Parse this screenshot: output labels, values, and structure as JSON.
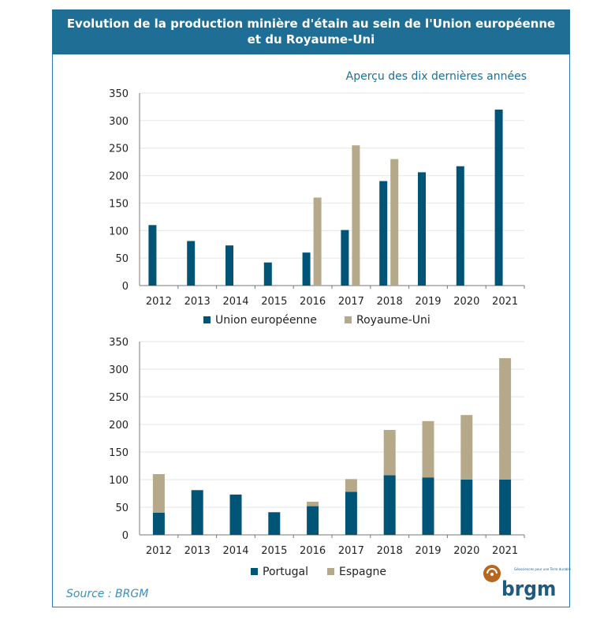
{
  "header": {
    "title_line1": "Evolution de la production minière d'étain au sein de l'Union européenne",
    "title_line2": "et du Royaume-Uni"
  },
  "subtitle": "Aperçu des dix dernières années",
  "source": "Source : BRGM",
  "logo": {
    "text": "brgm",
    "tagline": "Géosciences pour une Terre durable"
  },
  "colors": {
    "navy": "#005577",
    "tan": "#b6a98a",
    "header": "#1f6e96"
  },
  "chart_data": [
    {
      "type": "bar",
      "grouping": "clustered",
      "categories": [
        "2012",
        "2013",
        "2014",
        "2015",
        "2016",
        "2017",
        "2018",
        "2019",
        "2020",
        "2021"
      ],
      "series": [
        {
          "name": "Union européenne",
          "color": "#005577",
          "values": [
            110,
            81,
            73,
            42,
            60,
            101,
            190,
            206,
            217,
            320
          ]
        },
        {
          "name": "Royaume-Uni",
          "color": "#b6a98a",
          "values": [
            null,
            null,
            null,
            null,
            160,
            255,
            230,
            null,
            null,
            null
          ]
        }
      ],
      "ylim": [
        0,
        350
      ],
      "yticks": [
        0,
        50,
        100,
        150,
        200,
        250,
        300,
        350
      ],
      "grid": true,
      "legend": "bottom"
    },
    {
      "type": "bar",
      "grouping": "stacked",
      "categories": [
        "2012",
        "2013",
        "2014",
        "2015",
        "2016",
        "2017",
        "2018",
        "2019",
        "2020",
        "2021"
      ],
      "series": [
        {
          "name": "Portugal",
          "color": "#005577",
          "values": [
            40,
            81,
            73,
            41,
            52,
            78,
            108,
            104,
            100,
            100
          ]
        },
        {
          "name": "Espagne",
          "color": "#b6a98a",
          "values": [
            70,
            0,
            0,
            0,
            8,
            23,
            82,
            102,
            117,
            220
          ]
        }
      ],
      "ylim": [
        0,
        350
      ],
      "yticks": [
        0,
        50,
        100,
        150,
        200,
        250,
        300,
        350
      ],
      "grid": true,
      "legend": "bottom"
    }
  ]
}
